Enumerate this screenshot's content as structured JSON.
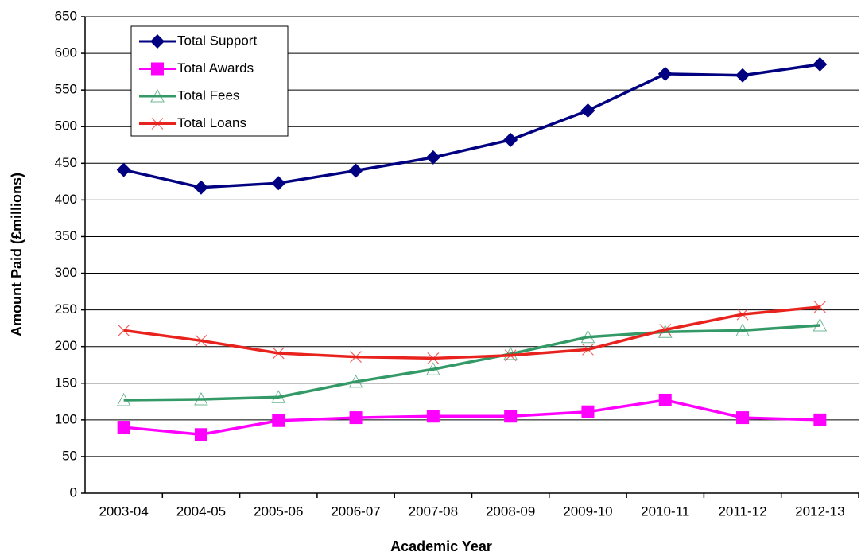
{
  "chart_data": {
    "type": "line",
    "x_label": "Academic Year",
    "y_label": "Amount Paid (£millions)",
    "categories": [
      "2003-04",
      "2004-05",
      "2005-06",
      "2006-07",
      "2007-08",
      "2008-09",
      "2009-10",
      "2010-11",
      "2011-12",
      "2012-13"
    ],
    "series": [
      {
        "name": "Total Support",
        "color": "#000080",
        "marker": "diamond",
        "values": [
          441,
          417,
          423,
          440,
          458,
          482,
          522,
          572,
          570,
          585
        ]
      },
      {
        "name": "Total Awards",
        "color": "#ff00ff",
        "marker": "square",
        "values": [
          90,
          80,
          99,
          103,
          105,
          105,
          111,
          127,
          103,
          100
        ]
      },
      {
        "name": "Total Fees",
        "color": "#339966",
        "marker": "triangle",
        "values": [
          127,
          128,
          131,
          152,
          169,
          190,
          213,
          220,
          222,
          229
        ]
      },
      {
        "name": "Total Loans",
        "color": "#e8231e",
        "marker": "x",
        "values": [
          222,
          208,
          191,
          186,
          184,
          188,
          196,
          223,
          244,
          254
        ]
      }
    ],
    "ylim": [
      0,
      650
    ],
    "yticks": [
      0,
      50,
      100,
      150,
      200,
      250,
      300,
      350,
      400,
      450,
      500,
      550,
      600,
      650
    ],
    "grid": true,
    "legend": "upper left"
  }
}
